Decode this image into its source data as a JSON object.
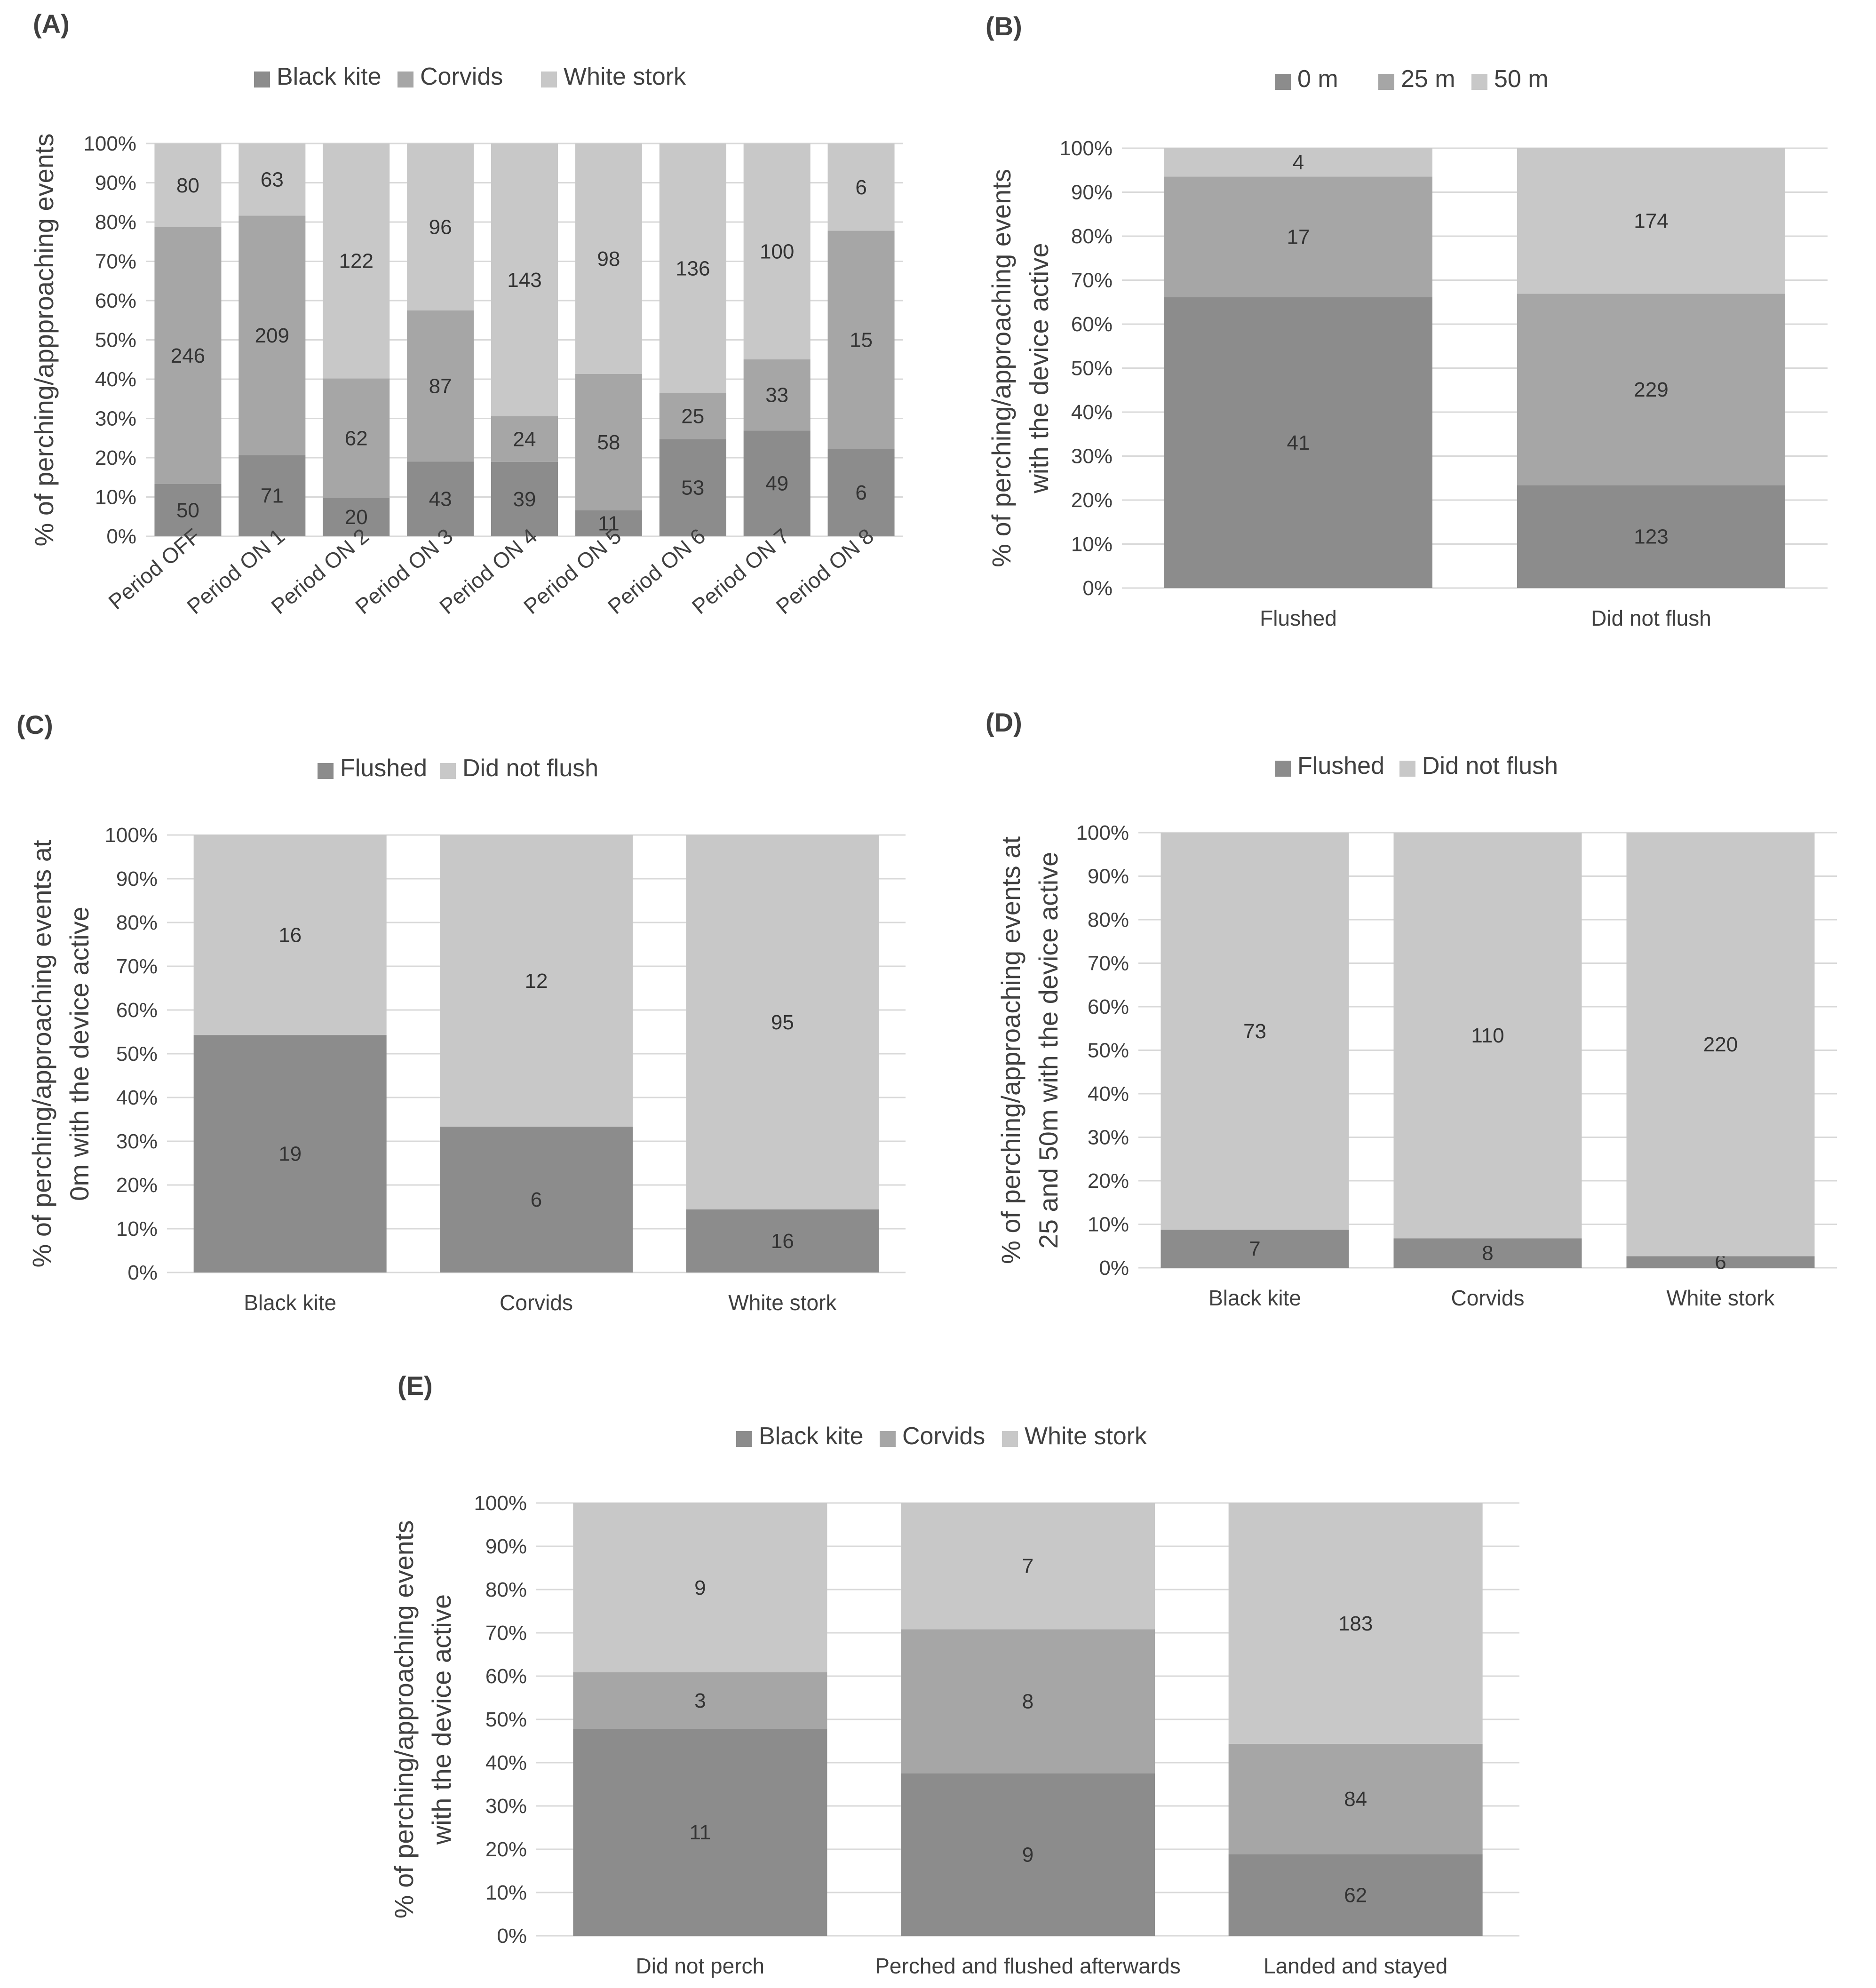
{
  "colors": {
    "dark": "#8c8c8c",
    "mid": "#a6a6a6",
    "light": "#c8c8c8"
  },
  "chart_data": [
    {
      "id": "A",
      "type": "bar",
      "stacked": "percent",
      "panel_label": "(A)",
      "title": "",
      "categories": [
        "Period OFF",
        "Period ON 1",
        "Period ON 2",
        "Period ON 3",
        "Period ON 4",
        "Period ON 5",
        "Period ON 6",
        "Period ON 7",
        "Period ON 8"
      ],
      "series": [
        {
          "name": "Black kite",
          "values": [
            50,
            71,
            20,
            43,
            39,
            11,
            53,
            49,
            6
          ]
        },
        {
          "name": "Corvids",
          "values": [
            246,
            209,
            62,
            87,
            24,
            58,
            25,
            33,
            15
          ]
        },
        {
          "name": "White stork",
          "values": [
            80,
            63,
            122,
            96,
            143,
            98,
            136,
            100,
            6
          ]
        }
      ],
      "ylabel_lines": [
        "% of perching/appproaching events"
      ],
      "yticks": [
        "0%",
        "10%",
        "20%",
        "30%",
        "40%",
        "50%",
        "60%",
        "70%",
        "80%",
        "90%",
        "100%"
      ],
      "ylim": [
        0,
        100
      ],
      "xlabel": "",
      "grid": true,
      "legend": "top"
    },
    {
      "id": "B",
      "type": "bar",
      "stacked": "percent",
      "panel_label": "(B)",
      "title": "",
      "categories": [
        "Flushed",
        "Did not flush"
      ],
      "series": [
        {
          "name": "0 m",
          "values": [
            41,
            123
          ]
        },
        {
          "name": "25 m",
          "values": [
            17,
            229
          ]
        },
        {
          "name": "50 m",
          "values": [
            4,
            174
          ]
        }
      ],
      "ylabel_lines": [
        "% of perching/approaching events",
        "with the device active"
      ],
      "yticks": [
        "0%",
        "10%",
        "20%",
        "30%",
        "40%",
        "50%",
        "60%",
        "70%",
        "80%",
        "90%",
        "100%"
      ],
      "ylim": [
        0,
        100
      ],
      "xlabel": "",
      "grid": true,
      "legend": "top"
    },
    {
      "id": "C",
      "type": "bar",
      "stacked": "percent",
      "panel_label": "(C)",
      "title": "",
      "categories": [
        "Black kite",
        "Corvids",
        "White stork"
      ],
      "series": [
        {
          "name": "Flushed",
          "values": [
            19,
            6,
            16
          ]
        },
        {
          "name": "Did not flush",
          "values": [
            16,
            12,
            95
          ]
        }
      ],
      "ylabel_lines": [
        "% of perching/approaching events at",
        "0m with the device active"
      ],
      "yticks": [
        "0%",
        "10%",
        "20%",
        "30%",
        "40%",
        "50%",
        "60%",
        "70%",
        "80%",
        "90%",
        "100%"
      ],
      "ylim": [
        0,
        100
      ],
      "xlabel": "",
      "grid": true,
      "legend": "top"
    },
    {
      "id": "D",
      "type": "bar",
      "stacked": "percent",
      "panel_label": "(D)",
      "title": "",
      "categories": [
        "Black kite",
        "Corvids",
        "White stork"
      ],
      "series": [
        {
          "name": "Flushed",
          "values": [
            7,
            8,
            6
          ]
        },
        {
          "name": "Did not flush",
          "values": [
            73,
            110,
            220
          ]
        }
      ],
      "ylabel_lines": [
        "% of perching/approaching events at",
        "25 and 50m with the device active"
      ],
      "yticks": [
        "0%",
        "10%",
        "20%",
        "30%",
        "40%",
        "50%",
        "60%",
        "70%",
        "80%",
        "90%",
        "100%"
      ],
      "ylim": [
        0,
        100
      ],
      "xlabel": "",
      "grid": true,
      "legend": "top"
    },
    {
      "id": "E",
      "type": "bar",
      "stacked": "percent",
      "panel_label": "(E)",
      "title": "",
      "categories": [
        "Did not perch",
        "Perched and flushed afterwards",
        "Landed and stayed"
      ],
      "series": [
        {
          "name": "Black kite",
          "values": [
            11,
            9,
            62
          ]
        },
        {
          "name": "Corvids",
          "values": [
            3,
            8,
            84
          ]
        },
        {
          "name": "White stork",
          "values": [
            9,
            7,
            183
          ]
        }
      ],
      "ylabel_lines": [
        "% of perching/approaching events",
        "with the device active"
      ],
      "yticks": [
        "0%",
        "10%",
        "20%",
        "30%",
        "40%",
        "50%",
        "60%",
        "70%",
        "80%",
        "90%",
        "100%"
      ],
      "ylim": [
        0,
        100
      ],
      "xlabel": "",
      "grid": true,
      "legend": "top"
    }
  ]
}
